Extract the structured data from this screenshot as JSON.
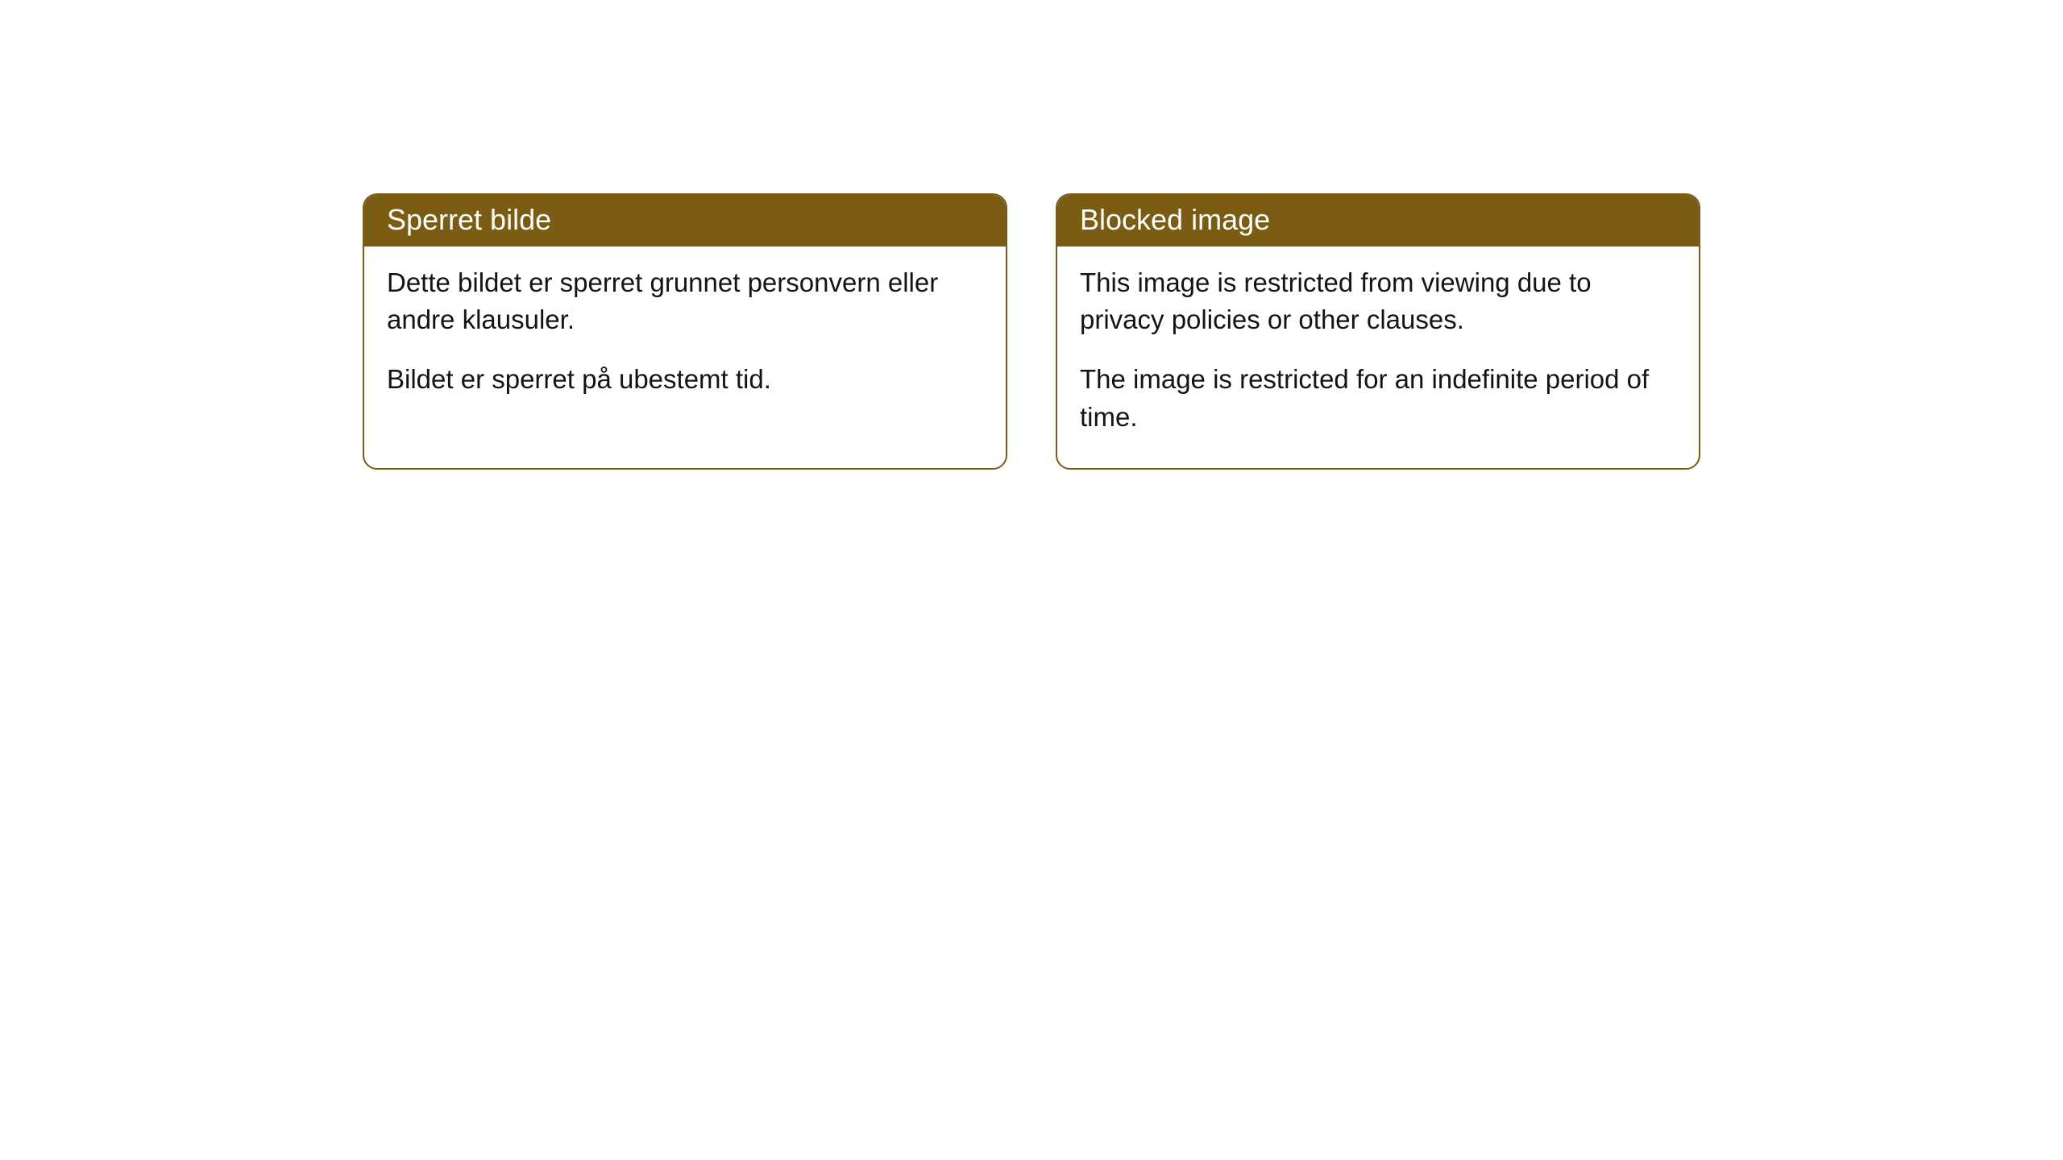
{
  "cards": [
    {
      "title": "Sperret bilde",
      "paragraph1": "Dette bildet er sperret grunnet personvern eller andre klausuler.",
      "paragraph2": "Bildet er sperret på ubestemt tid."
    },
    {
      "title": "Blocked image",
      "paragraph1": "This image is restricted from viewing due to privacy policies or other clauses.",
      "paragraph2": "The image is restricted for an indefinite period of time."
    }
  ],
  "style": {
    "header_bg_color": "#7a5c13",
    "header_text_color": "#ffffff",
    "border_color": "#7a5c13",
    "body_text_color": "#161413",
    "background_color": "#ffffff",
    "border_radius": 18,
    "title_fontsize": 36,
    "body_fontsize": 33
  }
}
